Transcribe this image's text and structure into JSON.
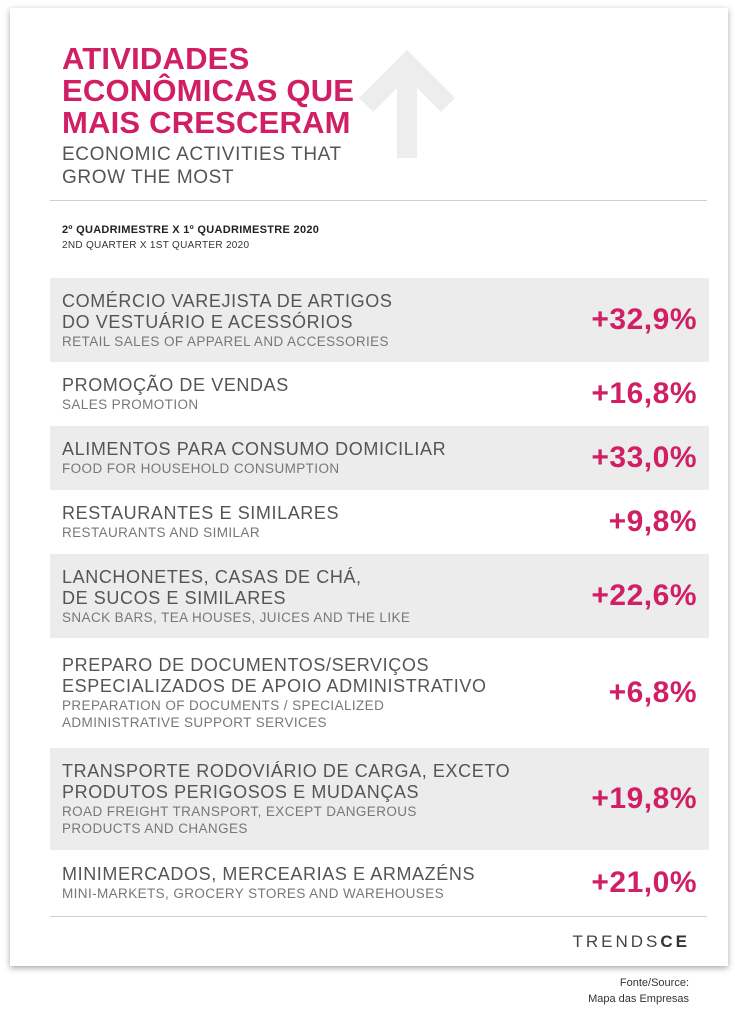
{
  "header": {
    "title_pt": "ATIVIDADES ECONÔMICAS QUE MAIS CRESCERAM",
    "title_en": "ECONOMIC ACTIVITIES THAT GROW THE MOST"
  },
  "period": {
    "pt": "2º QUADRIMESTRE X 1º QUADRIMESTRE 2020",
    "en": "2ND QUARTER X 1ST QUARTER 2020"
  },
  "colors": {
    "accent": "#d01f65",
    "row_shade": "#ececec"
  },
  "rows": [
    {
      "pt": "COMÉRCIO VAREJISTA DE ARTIGOS DO VESTUÁRIO E ACESSÓRIOS",
      "en": "RETAIL SALES OF APPAREL AND ACCESSORIES",
      "value": "+32,9%"
    },
    {
      "pt": "PROMOÇÃO DE VENDAS",
      "en": "SALES PROMOTION",
      "value": "+16,8%"
    },
    {
      "pt": "ALIMENTOS PARA CONSUMO DOMICILIAR",
      "en": "FOOD FOR HOUSEHOLD CONSUMPTION",
      "value": "+33,0%"
    },
    {
      "pt": "RESTAURANTES E SIMILARES",
      "en": "RESTAURANTS AND SIMILAR",
      "value": "+9,8%"
    },
    {
      "pt": "LANCHONETES, CASAS DE CHÁ, DE SUCOS E SIMILARES",
      "en": "SNACK BARS, TEA HOUSES, JUICES AND THE LIKE",
      "value": "+22,6%"
    },
    {
      "pt": "PREPARO DE DOCUMENTOS/SERVIÇOS ESPECIALIZADOS DE APOIO ADMINISTRATIVO",
      "en": "PREPARATION OF DOCUMENTS / SPECIALIZED ADMINISTRATIVE SUPPORT SERVICES",
      "value": "+6,8%"
    },
    {
      "pt": "TRANSPORTE RODOVIÁRIO DE CARGA, EXCETO PRODUTOS PERIGOSOS E MUDANÇAS",
      "en": "ROAD FREIGHT TRANSPORT, EXCEPT DANGEROUS PRODUCTS AND CHANGES",
      "value": "+19,8%"
    },
    {
      "pt": "MINIMERCADOS, MERCEARIAS E ARMAZÉNS",
      "en": "MINI-MARKETS, GROCERY STORES AND WAREHOUSES",
      "value": "+21,0%"
    }
  ],
  "logo": {
    "prefix": "TRENDS",
    "suffix": "CE"
  },
  "source": {
    "label": "Fonte/Source:",
    "name": "Mapa das Empresas"
  }
}
